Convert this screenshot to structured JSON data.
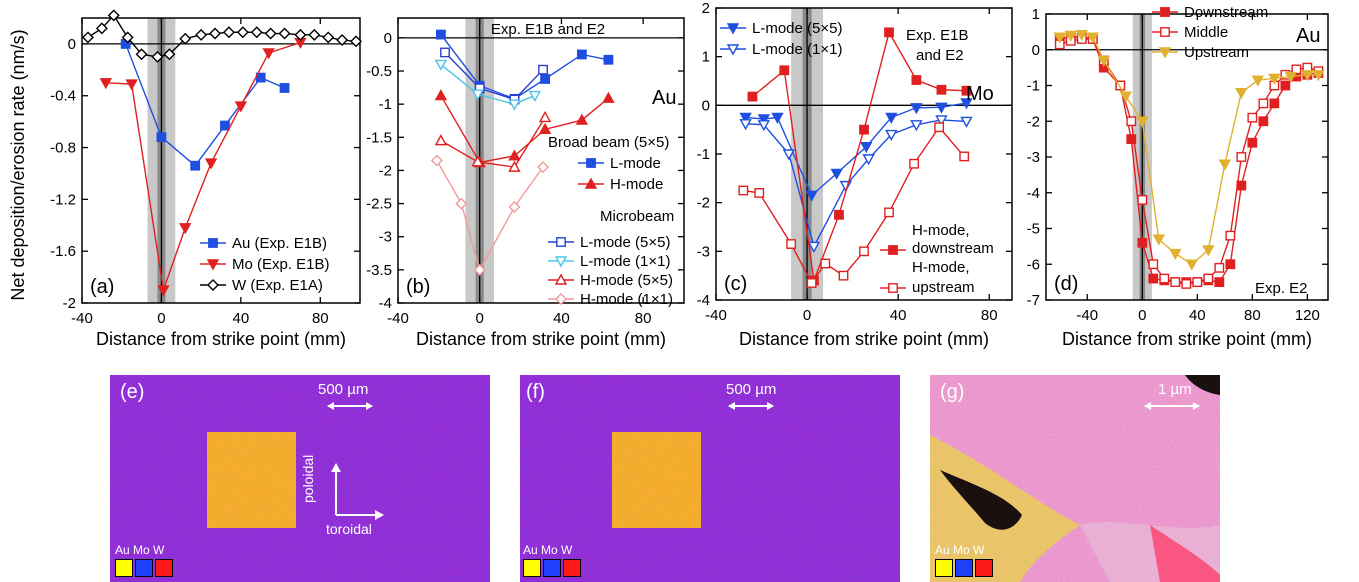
{
  "y_axis_label": "Net deposition/erosion rate (nm/s)",
  "chart_data": [
    {
      "panel": "(a)",
      "type": "line",
      "xlabel": "Distance from strike point (mm)",
      "xlim": [
        -40,
        100
      ],
      "ylim": [
        -2,
        0.2
      ],
      "xticks": [
        "-40",
        "0",
        "40",
        "80"
      ],
      "yticks": [
        "0",
        "-0.4",
        "-0.8",
        "-1.2",
        "-1.6",
        "-2"
      ],
      "legend_position": "bottom-right",
      "series": [
        {
          "name": "Au (Exp. E1B)",
          "color": "#1f4fe0",
          "marker": "square-filled",
          "x": [
            -18,
            0,
            17,
            32,
            50,
            62
          ],
          "y": [
            0,
            -0.72,
            -0.94,
            -0.63,
            -0.26,
            -0.34
          ]
        },
        {
          "name": "Mo (Exp. E1B)",
          "color": "#e02020",
          "marker": "tri-down-filled",
          "x": [
            -28,
            -15,
            1,
            12,
            25,
            40,
            54,
            70
          ],
          "y": [
            -0.3,
            -0.31,
            -1.9,
            -1.42,
            -0.92,
            -0.48,
            -0.07,
            0.01
          ]
        },
        {
          "name": "W (Exp. E1A)",
          "color": "#000000",
          "marker": "diamond-open",
          "x": [
            -37,
            -30,
            -24,
            -17,
            -10,
            -2,
            4,
            12,
            20,
            27,
            34,
            41,
            48,
            55,
            62,
            70,
            77,
            84,
            91,
            98
          ],
          "y": [
            0.05,
            0.12,
            0.22,
            0.05,
            -0.08,
            -0.1,
            -0.08,
            0.04,
            0.07,
            0.08,
            0.09,
            0.09,
            0.09,
            0.08,
            0.08,
            0.07,
            0.07,
            0.05,
            0.03,
            0.02
          ]
        }
      ]
    },
    {
      "panel": "(b)",
      "type": "line",
      "xlabel": "Distance from strike point (mm)",
      "xlim": [
        -40,
        100
      ],
      "ylim": [
        -4,
        0.3
      ],
      "xticks": [
        "-40",
        "0",
        "40",
        "80"
      ],
      "yticks": [
        "0",
        "-0.5",
        "-1",
        "-1.5",
        "-2",
        "-2.5",
        "-3",
        "-3.5",
        "-4"
      ],
      "annotations": [
        "Exp. E1B and E2",
        "Au",
        "Broad beam (5×5)",
        "Microbeam"
      ],
      "series": [
        {
          "name": "L-mode",
          "group": "Broad beam (5×5)",
          "color": "#1f4fe0",
          "marker": "square-filled",
          "x": [
            -19,
            0,
            17,
            32,
            50,
            63
          ],
          "y": [
            0.05,
            -0.72,
            -0.92,
            -0.62,
            -0.25,
            -0.33
          ]
        },
        {
          "name": "H-mode",
          "group": "Broad beam (5×5)",
          "color": "#e02020",
          "marker": "tri-up-filled",
          "x": [
            -19,
            0,
            17,
            32,
            50,
            63
          ],
          "y": [
            -0.87,
            -1.88,
            -1.78,
            -1.38,
            -1.24,
            -0.91
          ]
        },
        {
          "name": "L-mode (5×5)",
          "group": "Microbeam",
          "color": "#2a3fd0",
          "marker": "square-open",
          "x": [
            -17,
            0,
            17,
            31
          ],
          "y": [
            -0.22,
            -0.76,
            -0.93,
            -0.48
          ]
        },
        {
          "name": "L-mode (1×1)",
          "group": "Microbeam",
          "color": "#4fc3e8",
          "marker": "tri-down-open",
          "x": [
            -19,
            -1,
            17,
            27
          ],
          "y": [
            -0.4,
            -0.85,
            -1.0,
            -0.87
          ]
        },
        {
          "name": "H-mode (5×5)",
          "group": "Microbeam",
          "color": "#e02020",
          "marker": "tri-up-open",
          "x": [
            -19,
            -1,
            17,
            32
          ],
          "y": [
            -1.55,
            -1.87,
            -1.95,
            -1.2
          ]
        },
        {
          "name": "H-mode (1×1)",
          "group": "Microbeam",
          "color": "#f29a9a",
          "marker": "diamond-open",
          "x": [
            -21,
            -9,
            0,
            17,
            31
          ],
          "y": [
            -1.85,
            -2.5,
            -3.5,
            -2.55,
            -1.95
          ]
        }
      ]
    },
    {
      "panel": "(c)",
      "type": "line",
      "xlabel": "Distance from strike point (mm)",
      "xlim": [
        -40,
        90
      ],
      "ylim": [
        -4,
        2
      ],
      "xticks": [
        "-40",
        "0",
        "40",
        "80"
      ],
      "yticks": [
        "2",
        "1",
        "0",
        "-1",
        "-2",
        "-3",
        "-4"
      ],
      "annotations": [
        "Exp. E1B",
        "and E2",
        "Mo"
      ],
      "series": [
        {
          "name": "L-mode (5×5)",
          "color": "#1f4fe0",
          "marker": "tri-down-filled",
          "x": [
            -27,
            -19,
            -13,
            2,
            13,
            26,
            37,
            48,
            59,
            70
          ],
          "y": [
            -0.25,
            -0.28,
            -0.25,
            -1.85,
            -1.4,
            -0.85,
            -0.25,
            -0.05,
            -0.04,
            0.05
          ]
        },
        {
          "name": "L-mode (1×1)",
          "color": "#1f4fe0",
          "marker": "tri-down-open",
          "x": [
            -27,
            -19,
            -8,
            3,
            17,
            27,
            37,
            48,
            59,
            70
          ],
          "y": [
            -0.38,
            -0.4,
            -1.0,
            -2.9,
            -1.65,
            -1.1,
            -0.6,
            -0.4,
            -0.3,
            -0.33
          ]
        },
        {
          "name": "H-mode, downstream",
          "color": "#e02020",
          "marker": "square-filled",
          "x": [
            -24,
            -10,
            3,
            14,
            25,
            36,
            48,
            59,
            70
          ],
          "y": [
            0.18,
            0.72,
            -3.6,
            -2.25,
            -0.5,
            1.5,
            0.52,
            0.32,
            0.3
          ]
        },
        {
          "name": "H-mode, upstream",
          "color": "#e02020",
          "marker": "square-open",
          "x": [
            -28,
            -21,
            -7,
            2,
            8,
            16,
            25,
            36,
            47,
            58,
            69
          ],
          "y": [
            -1.75,
            -1.8,
            -2.85,
            -3.65,
            -3.25,
            -3.5,
            -3.0,
            -2.2,
            -1.2,
            -0.45,
            -1.05
          ]
        }
      ]
    },
    {
      "panel": "(d)",
      "type": "line",
      "xlabel": "Distance from strike point (mm)",
      "xlim": [
        -70,
        135
      ],
      "ylim": [
        -7,
        1
      ],
      "xticks": [
        "-40",
        "0",
        "40",
        "80",
        "120"
      ],
      "yticks": [
        "1",
        "0",
        "-1",
        "-2",
        "-3",
        "-4",
        "-5",
        "-6",
        "-7"
      ],
      "annotations": [
        "Au",
        "Exp. E2"
      ],
      "series": [
        {
          "name": "Downstream",
          "color": "#e02020",
          "marker": "square-filled",
          "x": [
            -60,
            -52,
            -44,
            -36,
            -28,
            -16,
            -8,
            0,
            8,
            16,
            24,
            32,
            40,
            48,
            56,
            64,
            72,
            80,
            88,
            96,
            104,
            112,
            120,
            128
          ],
          "y": [
            0.3,
            0.35,
            0.35,
            0.3,
            -0.5,
            -1.0,
            -2.5,
            -5.4,
            -6.4,
            -6.45,
            -6.5,
            -6.5,
            -6.5,
            -6.45,
            -6.5,
            -6.0,
            -3.8,
            -2.6,
            -2.0,
            -1.5,
            -1.0,
            -0.75,
            -0.7,
            -0.65
          ]
        },
        {
          "name": "Middle",
          "color": "#e02020",
          "marker": "square-open",
          "x": [
            -60,
            -52,
            -44,
            -36,
            -28,
            -16,
            -8,
            0,
            8,
            16,
            24,
            32,
            40,
            48,
            56,
            64,
            72,
            80,
            88,
            96,
            104,
            112,
            120,
            128
          ],
          "y": [
            0.15,
            0.25,
            0.3,
            0.3,
            -0.3,
            -1.0,
            -2.0,
            -4.2,
            -6.0,
            -6.4,
            -6.5,
            -6.55,
            -6.5,
            -6.4,
            -6.1,
            -5.2,
            -3.0,
            -1.9,
            -1.5,
            -1.0,
            -0.7,
            -0.55,
            -0.5,
            -0.6
          ]
        },
        {
          "name": "Upstream",
          "color": "#e0b030",
          "marker": "tri-down-filled",
          "x": [
            -60,
            -52,
            -44,
            -36,
            -28,
            -12,
            0,
            12,
            24,
            36,
            48,
            60,
            72,
            84,
            96,
            108,
            120,
            128
          ],
          "y": [
            0.35,
            0.4,
            0.42,
            0.35,
            -0.3,
            -1.3,
            -2.0,
            -5.3,
            -5.7,
            -6.0,
            -5.6,
            -3.2,
            -1.2,
            -0.85,
            -0.8,
            -0.75,
            -0.7,
            -0.7
          ]
        }
      ]
    }
  ],
  "images": [
    {
      "label": "(e)",
      "scalebar": "500 µm",
      "axis_up": "poloidal",
      "axis_right": "toroidal"
    },
    {
      "label": "(f)",
      "scalebar": "500 µm"
    },
    {
      "label": "(g)",
      "scalebar": "1 µm"
    }
  ],
  "image_legend": {
    "labels": [
      "Au",
      "Mo",
      "W"
    ],
    "colors": [
      "#ffff00",
      "#1f3fff",
      "#ff1a1a"
    ]
  }
}
